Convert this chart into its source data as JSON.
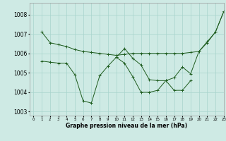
{
  "xlabel": "Graphe pression niveau de la mer (hPa)",
  "xlim": [
    -0.5,
    23
  ],
  "ylim": [
    1002.8,
    1008.6
  ],
  "yticks": [
    1003,
    1004,
    1005,
    1006,
    1007,
    1008
  ],
  "xticks": [
    0,
    1,
    2,
    3,
    4,
    5,
    6,
    7,
    8,
    9,
    10,
    11,
    12,
    13,
    14,
    15,
    16,
    17,
    18,
    19,
    20,
    21,
    22,
    23
  ],
  "bg_color": "#ceeae4",
  "line_color": "#1e5c1e",
  "grid_color": "#a8d4cc",
  "series": [
    {
      "x": [
        1,
        2,
        3,
        4,
        5,
        6,
        7,
        8,
        9,
        10,
        11,
        12,
        13,
        14,
        15,
        16,
        17,
        18,
        19,
        20,
        21,
        22,
        23
      ],
      "y": [
        1007.1,
        1006.55,
        1006.45,
        1006.35,
        1006.2,
        1006.1,
        1006.05,
        1006.0,
        1005.95,
        1005.9,
        1005.95,
        1006.0,
        1006.0,
        1006.0,
        1006.0,
        1006.0,
        1006.0,
        1006.0,
        1006.05,
        1006.1,
        1006.6,
        1007.1,
        1008.15
      ]
    },
    {
      "x": [
        1,
        2,
        3,
        4,
        5,
        6,
        7,
        8,
        9,
        10,
        11,
        12,
        13,
        14,
        15,
        16,
        17,
        18,
        19
      ],
      "y": [
        1005.6,
        1005.55,
        1005.5,
        1005.5,
        1004.9,
        1003.55,
        1003.45,
        1004.85,
        1005.35,
        1005.8,
        1006.25,
        1005.75,
        1005.4,
        1004.65,
        1004.6,
        1004.6,
        1004.1,
        1004.1,
        1004.6
      ]
    },
    {
      "x": [
        10,
        11,
        12,
        13,
        14,
        15,
        16,
        17,
        18,
        19,
        20,
        21,
        22,
        23
      ],
      "y": [
        1005.8,
        1005.5,
        1004.8,
        1004.0,
        1004.0,
        1004.1,
        1004.6,
        1004.75,
        1005.3,
        1004.95,
        1006.1,
        1006.55,
        1007.1,
        1008.15
      ]
    }
  ],
  "marker": "+",
  "marker_size": 2.5,
  "lw": 0.7
}
